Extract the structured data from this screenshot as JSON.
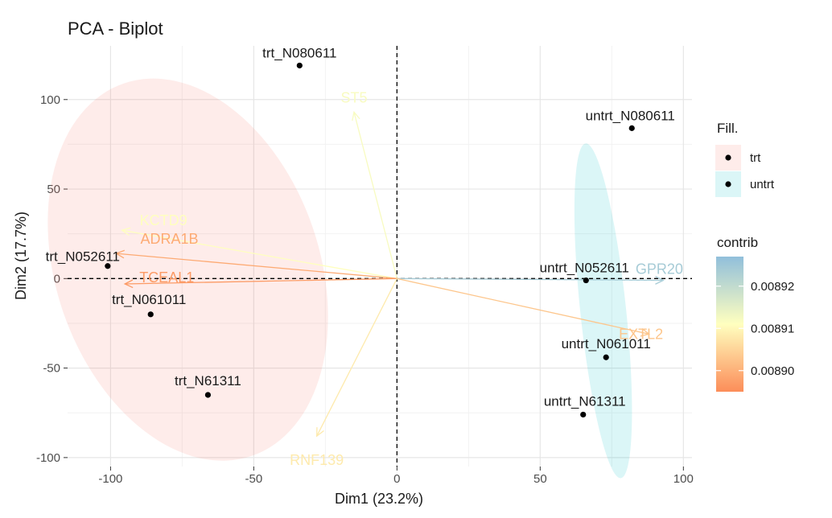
{
  "chart_data": {
    "type": "scatter",
    "subtype": "pca-biplot",
    "title": "PCA - Biplot",
    "xlabel": "Dim1 (23.2%)",
    "ylabel": "Dim2 (17.7%)",
    "xlim": [
      -115,
      103
    ],
    "ylim": [
      -105,
      130
    ],
    "xticks": [
      -100,
      -50,
      0,
      50,
      100
    ],
    "yticks": [
      -100,
      -50,
      0,
      50,
      100
    ],
    "grid": true,
    "individuals": [
      {
        "name": "trt_N080611",
        "group": "trt",
        "x": -34,
        "y": 119
      },
      {
        "name": "trt_N052611",
        "group": "trt",
        "x": -101,
        "y": 7
      },
      {
        "name": "trt_N061011",
        "group": "trt",
        "x": -86,
        "y": -20
      },
      {
        "name": "trt_N61311",
        "group": "trt",
        "x": -66,
        "y": -65
      },
      {
        "name": "untrt_N080611",
        "group": "untrt",
        "x": 82,
        "y": 84
      },
      {
        "name": "untrt_N052611",
        "group": "untrt",
        "x": 66,
        "y": -1
      },
      {
        "name": "untrt_N061011",
        "group": "untrt",
        "x": 73,
        "y": -44
      },
      {
        "name": "untrt_N61311",
        "group": "untrt",
        "x": 65,
        "y": -76
      }
    ],
    "variables": [
      {
        "name": "ST5",
        "x": -15,
        "y": 93,
        "contrib": 0.008912
      },
      {
        "name": "KCTD9",
        "x": -96,
        "y": 27,
        "contrib": 0.008911
      },
      {
        "name": "ADRA1B",
        "x": -98,
        "y": 14,
        "contrib": 0.008899
      },
      {
        "name": "TCEAL1",
        "x": -95,
        "y": -3,
        "contrib": 0.008897
      },
      {
        "name": "GPR20",
        "x": 93,
        "y": -1,
        "contrib": 0.008924
      },
      {
        "name": "EXTL2",
        "x": 88,
        "y": -31,
        "contrib": 0.008903
      },
      {
        "name": "RNF139",
        "x": -28,
        "y": -88,
        "contrib": 0.008908
      }
    ],
    "ellipses": [
      {
        "group": "trt",
        "color": "#F8766D"
      },
      {
        "group": "untrt",
        "color": "#00BFC4"
      }
    ],
    "legend": {
      "fill_title": "Fill.",
      "fill_items": [
        {
          "label": "trt",
          "color": "#F8766D"
        },
        {
          "label": "untrt",
          "color": "#00BFC4"
        }
      ],
      "contrib_title": "contrib",
      "contrib_ticks": [
        {
          "label": "0.00892",
          "value": 0.00892
        },
        {
          "label": "0.00891",
          "value": 0.00891
        },
        {
          "label": "0.00890",
          "value": 0.0089
        }
      ],
      "contrib_range": [
        0.008895,
        0.008927
      ],
      "placement": "right"
    }
  }
}
